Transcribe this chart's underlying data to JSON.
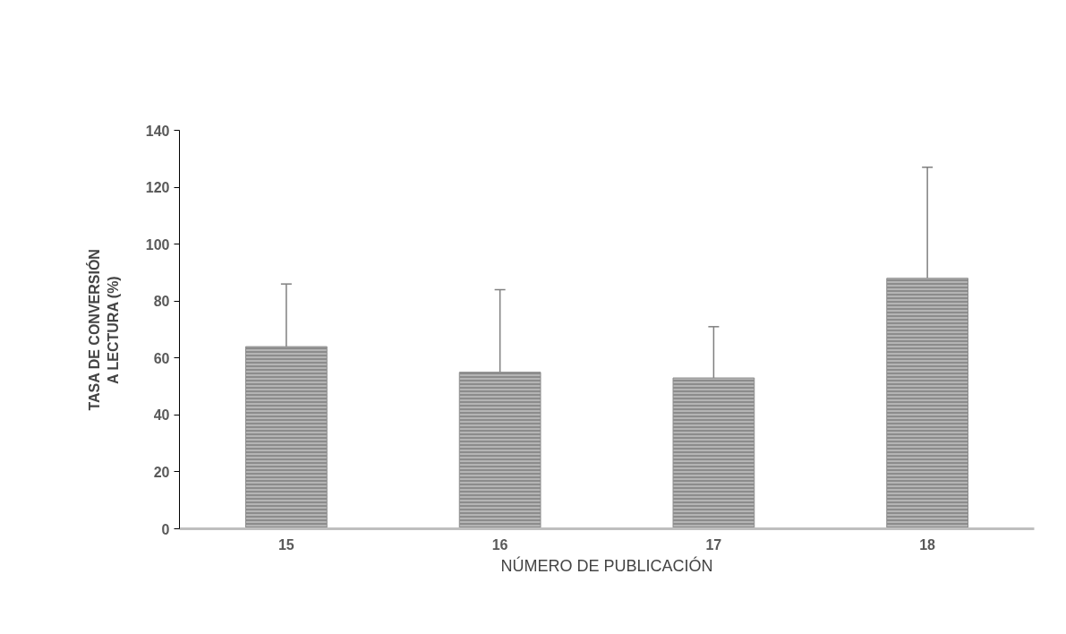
{
  "chart_data": {
    "type": "bar",
    "xlabel": "NÚMERO DE PUBLICACIÓN",
    "ylabel": "TASA DE CONVERSIÓN\nA LECTURA (%)",
    "categories": [
      "15",
      "16",
      "17",
      "18"
    ],
    "values": [
      64,
      55,
      53,
      88
    ],
    "errors": [
      [
        64,
        86
      ],
      [
        55,
        84
      ],
      [
        53,
        71
      ],
      [
        88,
        127
      ]
    ],
    "color": "#8c8c8c",
    "ylim": [
      0,
      140
    ],
    "yticks": [
      0,
      20,
      40,
      60,
      80,
      100,
      120,
      140
    ],
    "grid": false
  }
}
